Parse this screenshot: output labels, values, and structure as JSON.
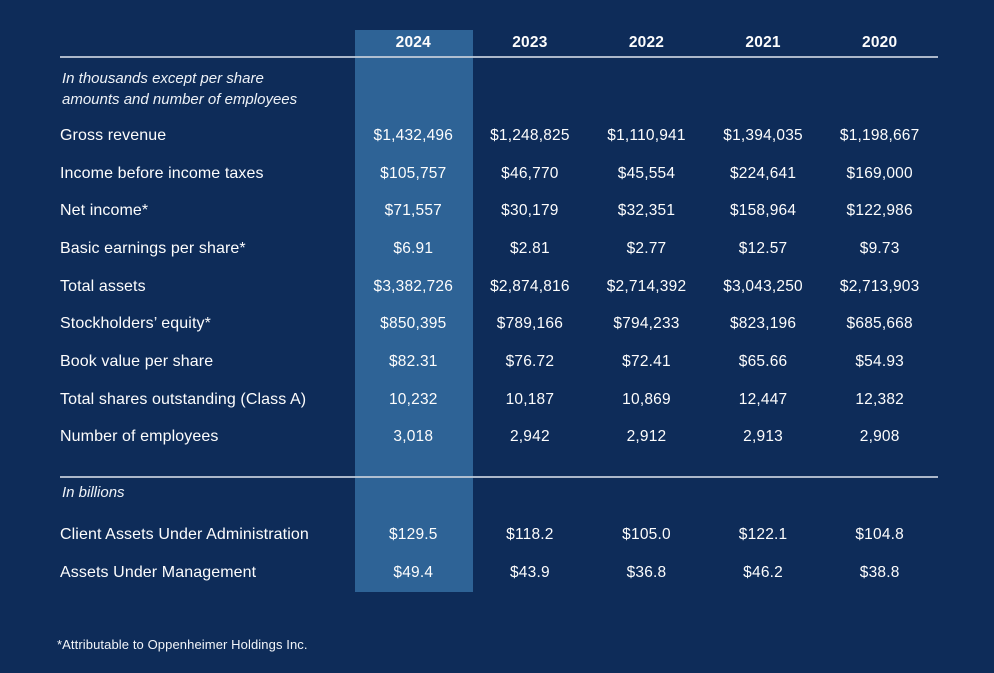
{
  "page": {
    "colors": {
      "background": "#0e2c59",
      "highlight_band": "#2e6396",
      "rule": "#c3ccd9",
      "text": "#fdfdfd"
    }
  },
  "chart_data": {
    "type": "table",
    "columns": [
      "",
      "2024",
      "2023",
      "2022",
      "2021",
      "2020"
    ],
    "highlighted_column": "2024",
    "sections": [
      {
        "note": "In thousands except per share amounts and number of employees",
        "note_lines": [
          "In thousands except per share",
          "amounts and number of employees"
        ],
        "rows": [
          {
            "label": "Gross revenue",
            "values": [
              "$1,432,496",
              "$1,248,825",
              "$1,110,941",
              "$1,394,035",
              "$1,198,667"
            ]
          },
          {
            "label": "Income before income taxes",
            "values": [
              "$105,757",
              "$46,770",
              "$45,554",
              "$224,641",
              "$169,000"
            ]
          },
          {
            "label": "Net income*",
            "values": [
              "$71,557",
              "$30,179",
              "$32,351",
              "$158,964",
              "$122,986"
            ]
          },
          {
            "label": "Basic earnings per share*",
            "values": [
              "$6.91",
              "$2.81",
              "$2.77",
              "$12.57",
              "$9.73"
            ]
          },
          {
            "label": "Total assets",
            "values": [
              "$3,382,726",
              "$2,874,816",
              "$2,714,392",
              "$3,043,250",
              "$2,713,903"
            ]
          },
          {
            "label": "Stockholders’ equity*",
            "values": [
              "$850,395",
              "$789,166",
              "$794,233",
              "$823,196",
              "$685,668"
            ]
          },
          {
            "label": "Book value per share",
            "values": [
              "$82.31",
              "$76.72",
              "$72.41",
              "$65.66",
              "$54.93"
            ]
          },
          {
            "label": "Total shares outstanding (Class A)",
            "values": [
              "10,232",
              "10,187",
              "10,869",
              "12,447",
              "12,382"
            ]
          },
          {
            "label": "Number of employees",
            "values": [
              "3,018",
              "2,942",
              "2,912",
              "2,913",
              "2,908"
            ]
          }
        ]
      },
      {
        "note": "In billions",
        "rows": [
          {
            "label": "Client Assets Under Administration",
            "values": [
              "$129.5",
              "$118.2",
              "$105.0",
              "$122.1",
              "$104.8"
            ]
          },
          {
            "label": "Assets Under Management",
            "values": [
              "$49.4",
              "$43.9",
              "$36.8",
              "$46.2",
              "$38.8"
            ]
          }
        ]
      }
    ],
    "footnote": "*Attributable to Oppenheimer Holdings Inc."
  }
}
